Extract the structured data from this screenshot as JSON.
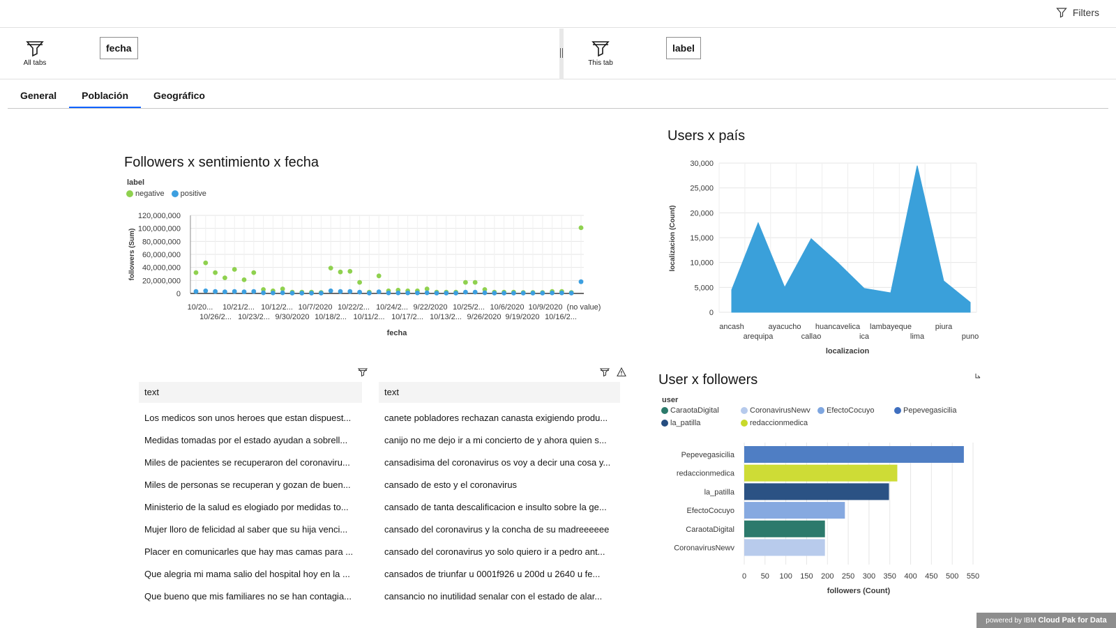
{
  "header": {
    "filters_label": "Filters"
  },
  "filter_bar": {
    "left": {
      "scope_label": "All tabs",
      "chip": "fecha"
    },
    "right": {
      "scope_label": "This tab",
      "chip": "label"
    }
  },
  "tabs": [
    {
      "label": "General"
    },
    {
      "label": "Población",
      "active": true
    },
    {
      "label": "Geográfico"
    }
  ],
  "widgets": {
    "scatter": {
      "title": "Followers x sentimiento x fecha",
      "legend_title": "label",
      "legend": [
        {
          "name": "negative",
          "color": "#8fd14f"
        },
        {
          "name": "positive",
          "color": "#3c9fe0"
        }
      ]
    },
    "area": {
      "title": "Users x país"
    },
    "hbar": {
      "title": "User x followers",
      "legend_title": "user",
      "legend": [
        {
          "name": "CaraotaDigital",
          "color": "#2b7a6b"
        },
        {
          "name": "CoronavirusNewv",
          "color": "#b6caec"
        },
        {
          "name": "EfectoCocuyo",
          "color": "#7ea6e0"
        },
        {
          "name": "Pepevegasicilia",
          "color": "#3f6fbf"
        },
        {
          "name": "la_patilla",
          "color": "#264d80"
        },
        {
          "name": "redaccionmedica",
          "color": "#c8d92b"
        }
      ]
    }
  },
  "tables": {
    "left": {
      "header": "text",
      "rows": [
        "Los medicos son unos heroes que estan dispuest...",
        "Medidas tomadas por el estado ayudan a sobrell...",
        "Miles de pacientes se recuperaron del coronaviru...",
        "Miles de personas se recuperan y gozan de buen...",
        "Ministerio de la salud es elogiado por medidas to...",
        "Mujer lloro de felicidad al saber que su hija venci...",
        "Placer en comunicarles que hay mas camas para ...",
        "Que alegria mi mama salio del hospital hoy en la ...",
        "Que bueno que mis familiares no se han contagia..."
      ]
    },
    "right": {
      "header": "text",
      "rows": [
        "canete pobladores rechazan canasta exigiendo produ...",
        "canijo no me dejo ir a mi concierto de y ahora quien s...",
        "cansadisima del coronavirus os voy a decir una cosa y...",
        "cansado de esto y el coronavirus",
        "cansado de tanta descalificacion e insulto sobre la ge...",
        "cansado del coronavirus y la concha de su madreeeeee",
        "cansado del coronavirus yo solo quiero ir a pedro ant...",
        "cansados de triunfar u 0001f926 u 200d u 2640 u fe...",
        "cansancio no inutilidad senalar con el estado de alar..."
      ]
    }
  },
  "footer": {
    "powered_by": "powered by",
    "brand_prefix": "IBM",
    "brand": "Cloud Pak for Data"
  },
  "chart_data": [
    {
      "type": "scatter",
      "title": "Followers x sentimiento x fecha",
      "xlabel": "fecha",
      "ylabel": "followers (Sum)",
      "ylim": [
        0,
        120000000
      ],
      "yticks": [
        "0",
        "20,000,000",
        "40,000,000",
        "60,000,000",
        "80,000,000",
        "100,000,000",
        "120,000,000"
      ],
      "xtick_labels_top": [
        "10/20...",
        "10/21/2...",
        "10/12/2...",
        "10/7/2020",
        "10/22/2...",
        "10/24/2...",
        "9/22/2020",
        "10/25/2...",
        "10/6/2020",
        "10/9/2020",
        "(no value)"
      ],
      "xtick_labels_bottom": [
        "10/26/2...",
        "10/23/2...",
        "9/30/2020",
        "10/18/2...",
        "10/11/2...",
        "10/17/2...",
        "10/13/2...",
        "9/26/2020",
        "9/19/2020",
        "10/16/2..."
      ],
      "num_categories": 41,
      "legend_placement": "top-left",
      "grid": true,
      "series": [
        {
          "name": "negative",
          "color": "#8fd14f",
          "values": [
            32000000,
            47000000,
            32000000,
            24000000,
            37000000,
            21000000,
            32000000,
            6000000,
            4000000,
            7000000,
            2000000,
            2000000,
            2000000,
            1500000,
            39000000,
            33000000,
            34000000,
            17000000,
            2000000,
            27000000,
            4000000,
            5000000,
            4000000,
            4000000,
            7000000,
            2000000,
            2000000,
            2000000,
            17000000,
            17000000,
            6000000,
            2000000,
            2000000,
            2000000,
            1500000,
            1500000,
            1500000,
            3000000,
            3000000,
            1500000,
            101000000
          ]
        },
        {
          "name": "positive",
          "color": "#3c9fe0",
          "values": [
            3000000,
            4000000,
            3000000,
            2500000,
            3000000,
            2500000,
            3000000,
            1000000,
            800000,
            1000000,
            500000,
            500000,
            500000,
            500000,
            4000000,
            3000000,
            3000000,
            2000000,
            500000,
            2500000,
            800000,
            800000,
            800000,
            800000,
            1000000,
            500000,
            500000,
            500000,
            2000000,
            2000000,
            1000000,
            500000,
            500000,
            500000,
            500000,
            500000,
            500000,
            800000,
            800000,
            500000,
            18000000
          ]
        }
      ]
    },
    {
      "type": "area",
      "title": "Users x país",
      "xlabel": "localizacion",
      "ylabel": "localizacion (Count)",
      "ylim": [
        0,
        30000
      ],
      "yticks": [
        "0",
        "5,000",
        "10,000",
        "15,000",
        "20,000",
        "25,000",
        "30,000"
      ],
      "categories": [
        "ancash",
        "arequipa",
        "ayacucho",
        "callao",
        "huancavelica",
        "ica",
        "lambayeque",
        "lima",
        "piura",
        "puno"
      ],
      "values": [
        4500,
        18000,
        5000,
        14800,
        10000,
        4800,
        3900,
        29500,
        6300,
        2000
      ],
      "color": "#3aa0da",
      "grid": true
    },
    {
      "type": "bar",
      "orientation": "horizontal",
      "title": "User x followers",
      "xlabel": "followers (Count)",
      "ylabel": "user",
      "xlim": [
        0,
        550
      ],
      "xticks": [
        "0",
        "50",
        "100",
        "150",
        "200",
        "250",
        "300",
        "350",
        "400",
        "450",
        "500",
        "550"
      ],
      "categories": [
        "Pepevegasicilia",
        "redaccionmedica",
        "la_patilla",
        "EfectoCocuyo",
        "CaraotaDigital",
        "CoronavirusNewv"
      ],
      "values": [
        528,
        368,
        348,
        242,
        194,
        194
      ],
      "colors": [
        "#4f7ec4",
        "#cedc36",
        "#2b5284",
        "#86a9e0",
        "#2c7a6c",
        "#b8cbec"
      ],
      "legend_placement": "top-left",
      "grid": true
    }
  ]
}
